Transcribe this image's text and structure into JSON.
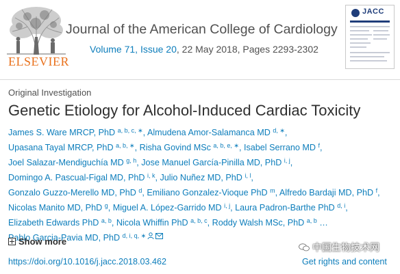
{
  "header": {
    "publisher": "ELSEVIER",
    "journal_title": "Journal of the American College of Cardiology",
    "volume_issue": "Volume 71, Issue 20",
    "date_pages": ", 22 May 2018, Pages 2293-2302",
    "cover_title": "JACC"
  },
  "article": {
    "type": "Original Investigation",
    "title": "Genetic Etiology for Alcohol-Induced Cardiac Toxicity",
    "authors": [
      {
        "name": "James S. Ware MRCP, PhD",
        "sup": "a, b, c, ∗"
      },
      {
        "name": "Almudena Amor-Salamanca MD",
        "sup": "d, ∗"
      },
      {
        "name": "Upasana Tayal MRCP, PhD",
        "sup": "a, b, ∗"
      },
      {
        "name": "Risha Govind MSc",
        "sup": "a, b, e, ∗"
      },
      {
        "name": "Isabel Serrano MD",
        "sup": "f"
      },
      {
        "name": "Joel Salazar-Mendiguchía MD",
        "sup": "g, h"
      },
      {
        "name": "Jose Manuel García-Pinilla MD, PhD",
        "sup": "i, j"
      },
      {
        "name": "Domingo A. Pascual-Figal MD, PhD",
        "sup": "i, k"
      },
      {
        "name": "Julio Nuñez MD, PhD",
        "sup": "i, l"
      },
      {
        "name": "Gonzalo Guzzo-Merello MD, PhD",
        "sup": "d"
      },
      {
        "name": "Emiliano Gonzalez-Vioque PhD",
        "sup": "m"
      },
      {
        "name": "Alfredo Bardaji MD, PhD",
        "sup": "f"
      },
      {
        "name": "Nicolas Manito MD, PhD",
        "sup": "g"
      },
      {
        "name": "Miguel A. López-Garrido MD",
        "sup": "i, j"
      },
      {
        "name": "Laura Padron-Barthe PhD",
        "sup": "d, i"
      },
      {
        "name": "Elizabeth Edwards PhD",
        "sup": "a, b"
      },
      {
        "name": "Nicola Whiffin PhD",
        "sup": "a, b, c"
      },
      {
        "name": "Roddy Walsh MSc, PhD",
        "sup": "a, b"
      }
    ],
    "ellipsis": "…",
    "last_author": {
      "name": "Pablo Garcia-Pavia MD, PhD",
      "sup": "d, i, q, ∗"
    },
    "show_more": "Show more",
    "doi": "https://doi.org/10.1016/j.jacc.2018.03.462",
    "rights": "Get rights and content"
  },
  "watermark": "中国生物技术网"
}
